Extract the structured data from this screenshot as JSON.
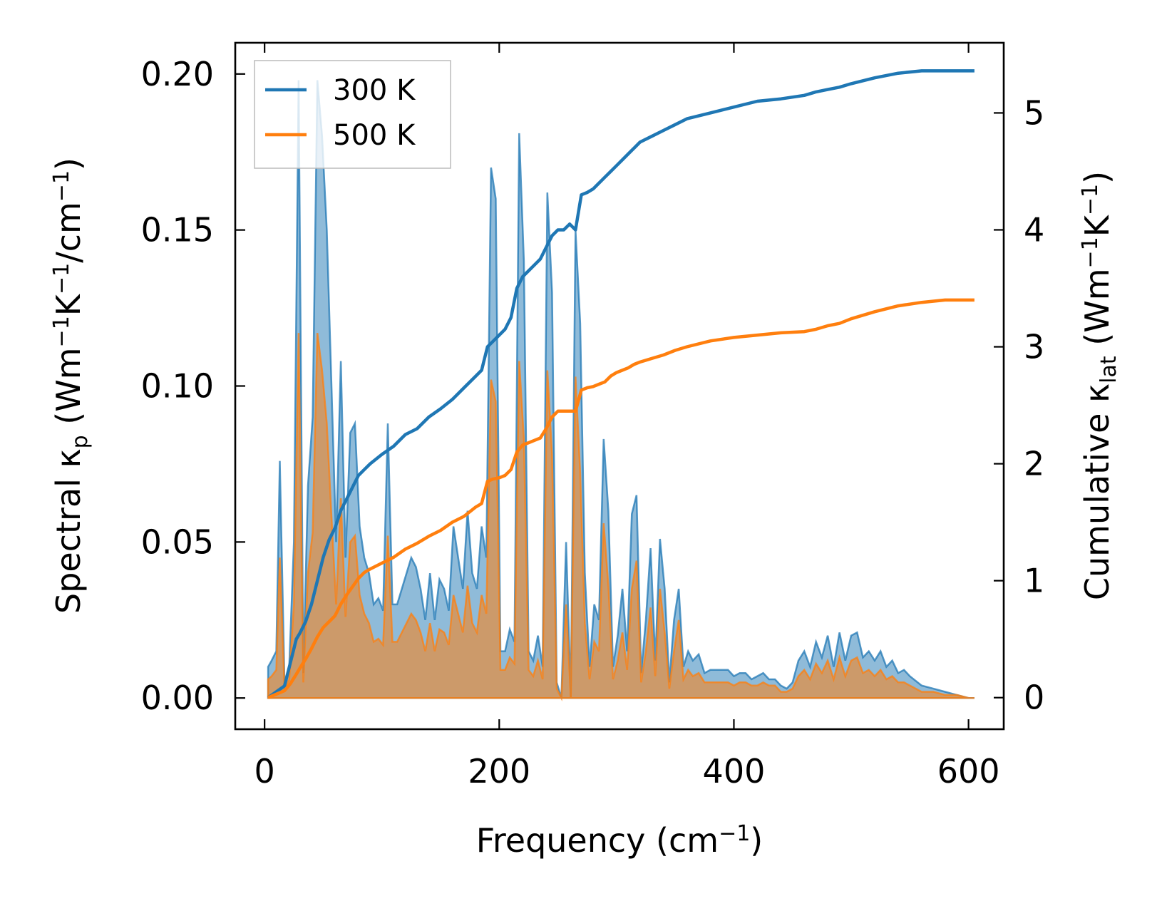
{
  "chart_data": {
    "type": "line",
    "x_axis": {
      "label_main": "Frequency (cm",
      "label_sup": "−1",
      "label_end": ")",
      "lim": [
        -25,
        630
      ],
      "ticks": [
        0,
        200,
        400,
        600
      ],
      "tick_labels": [
        "0",
        "200",
        "400",
        "600"
      ]
    },
    "y_left": {
      "label_parts": [
        "Spectral κ",
        "p",
        " (Wm",
        "−1",
        "K",
        "−1",
        "/cm",
        "−1",
        ")"
      ],
      "lim": [
        -0.01,
        0.21
      ],
      "ticks": [
        0,
        0.05,
        0.1,
        0.15,
        0.2
      ],
      "tick_labels": [
        "0.00",
        "0.05",
        "0.10",
        "0.15",
        "0.20"
      ]
    },
    "y_right": {
      "label_parts": [
        "Cumulative κ",
        "lat",
        " (Wm",
        "−1",
        "K",
        "−1",
        ")"
      ],
      "lim": [
        -0.27,
        5.6
      ],
      "ticks": [
        0,
        1,
        2,
        3,
        4,
        5
      ],
      "tick_labels": [
        "0",
        "1",
        "2",
        "3",
        "4",
        "5"
      ]
    },
    "legend": {
      "placement": "top-left",
      "entries": [
        "300 K",
        "500 K"
      ]
    },
    "series": [
      {
        "name": "300 K",
        "color": "#1f77b4",
        "fill_color": "#1f77b4",
        "spectral": {
          "x": [
            3,
            6,
            10,
            13,
            17,
            21,
            25,
            29,
            33,
            37,
            41,
            45,
            49,
            53,
            57,
            61,
            65,
            69,
            73,
            77,
            81,
            85,
            89,
            93,
            97,
            101,
            105,
            109,
            113,
            117,
            121,
            125,
            129,
            133,
            137,
            141,
            145,
            149,
            153,
            157,
            161,
            165,
            169,
            173,
            177,
            181,
            185,
            189,
            193,
            197,
            201,
            205,
            209,
            213,
            217,
            221,
            225,
            229,
            233,
            237,
            241,
            245,
            249,
            253,
            257,
            261,
            265,
            269,
            273,
            277,
            281,
            285,
            289,
            293,
            297,
            301,
            305,
            309,
            313,
            317,
            321,
            325,
            329,
            333,
            337,
            341,
            345,
            349,
            353,
            357,
            361,
            365,
            370,
            375,
            380,
            385,
            390,
            395,
            400,
            405,
            410,
            415,
            420,
            425,
            430,
            435,
            440,
            445,
            450,
            455,
            460,
            465,
            470,
            475,
            480,
            485,
            490,
            495,
            500,
            505,
            510,
            515,
            520,
            525,
            530,
            535,
            540,
            545,
            550,
            560,
            570,
            580,
            590,
            600,
            605
          ],
          "values": [
            0.01,
            0.012,
            0.015,
            0.076,
            0.005,
            0.01,
            0.05,
            0.198,
            0.008,
            0.068,
            0.09,
            0.198,
            0.18,
            0.15,
            0.1,
            0.05,
            0.108,
            0.045,
            0.085,
            0.088,
            0.055,
            0.045,
            0.04,
            0.03,
            0.032,
            0.028,
            0.088,
            0.03,
            0.03,
            0.035,
            0.04,
            0.045,
            0.042,
            0.035,
            0.025,
            0.04,
            0.025,
            0.038,
            0.035,
            0.028,
            0.055,
            0.045,
            0.035,
            0.06,
            0.04,
            0.035,
            0.055,
            0.045,
            0.17,
            0.16,
            0.015,
            0.015,
            0.022,
            0.018,
            0.181,
            0.14,
            0.015,
            0.012,
            0.02,
            0.01,
            0.162,
            0.13,
            0.005,
            0.0,
            0.05,
            0.0,
            0.15,
            0.12,
            0.04,
            0.01,
            0.03,
            0.025,
            0.083,
            0.06,
            0.01,
            0.02,
            0.035,
            0.015,
            0.059,
            0.065,
            0.008,
            0.025,
            0.048,
            0.012,
            0.051,
            0.035,
            0.005,
            0.025,
            0.035,
            0.01,
            0.015,
            0.012,
            0.014,
            0.008,
            0.009,
            0.009,
            0.009,
            0.009,
            0.007,
            0.008,
            0.008,
            0.006,
            0.007,
            0.008,
            0.006,
            0.006,
            0.004,
            0.003,
            0.005,
            0.012,
            0.015,
            0.01,
            0.018,
            0.013,
            0.02,
            0.01,
            0.021,
            0.012,
            0.02,
            0.021,
            0.013,
            0.015,
            0.012,
            0.015,
            0.01,
            0.012,
            0.008,
            0.009,
            0.007,
            0.004,
            0.003,
            0.002,
            0.001,
            0.0,
            0.0
          ]
        },
        "cumulative": {
          "x": [
            3,
            10,
            17,
            22,
            27,
            30,
            35,
            40,
            45,
            50,
            55,
            60,
            65,
            70,
            75,
            80,
            85,
            90,
            100,
            110,
            120,
            130,
            140,
            150,
            160,
            170,
            180,
            185,
            190,
            195,
            200,
            205,
            210,
            215,
            220,
            225,
            230,
            235,
            240,
            245,
            250,
            255,
            260,
            265,
            270,
            275,
            280,
            285,
            290,
            295,
            300,
            305,
            310,
            315,
            320,
            330,
            340,
            350,
            360,
            380,
            400,
            420,
            440,
            460,
            470,
            480,
            490,
            500,
            520,
            540,
            560,
            580,
            605
          ],
          "values": [
            0.0,
            0.05,
            0.1,
            0.3,
            0.5,
            0.55,
            0.65,
            0.8,
            1.0,
            1.2,
            1.35,
            1.45,
            1.6,
            1.7,
            1.8,
            1.9,
            1.95,
            2.0,
            2.08,
            2.15,
            2.25,
            2.3,
            2.4,
            2.47,
            2.55,
            2.65,
            2.75,
            2.8,
            3.0,
            3.05,
            3.1,
            3.15,
            3.25,
            3.5,
            3.6,
            3.65,
            3.7,
            3.75,
            3.85,
            3.95,
            4.0,
            4.0,
            4.05,
            4.0,
            4.3,
            4.32,
            4.35,
            4.4,
            4.45,
            4.5,
            4.55,
            4.6,
            4.65,
            4.7,
            4.75,
            4.8,
            4.85,
            4.9,
            4.95,
            5.0,
            5.05,
            5.1,
            5.12,
            5.15,
            5.18,
            5.2,
            5.22,
            5.25,
            5.3,
            5.34,
            5.36,
            5.36,
            5.36
          ]
        }
      },
      {
        "name": "500 K",
        "color": "#ff7f0e",
        "fill_color": "#ff7f0e",
        "spectral": {
          "x": [
            3,
            6,
            10,
            13,
            17,
            21,
            25,
            29,
            33,
            37,
            41,
            45,
            49,
            53,
            57,
            61,
            65,
            69,
            73,
            77,
            81,
            85,
            89,
            93,
            97,
            101,
            105,
            109,
            113,
            117,
            121,
            125,
            129,
            133,
            137,
            141,
            145,
            149,
            153,
            157,
            161,
            165,
            169,
            173,
            177,
            181,
            185,
            189,
            193,
            197,
            201,
            205,
            209,
            213,
            217,
            221,
            225,
            229,
            233,
            237,
            241,
            245,
            249,
            253,
            257,
            261,
            265,
            269,
            273,
            277,
            281,
            285,
            289,
            293,
            297,
            301,
            305,
            309,
            313,
            317,
            321,
            325,
            329,
            333,
            337,
            341,
            345,
            349,
            353,
            357,
            361,
            365,
            370,
            375,
            380,
            385,
            390,
            395,
            400,
            405,
            410,
            415,
            420,
            425,
            430,
            435,
            440,
            445,
            450,
            455,
            460,
            465,
            470,
            475,
            480,
            485,
            490,
            495,
            500,
            505,
            510,
            515,
            520,
            525,
            530,
            535,
            540,
            545,
            550,
            560,
            570,
            580,
            590,
            600,
            605
          ],
          "values": [
            0.006,
            0.007,
            0.009,
            0.045,
            0.003,
            0.006,
            0.03,
            0.117,
            0.005,
            0.04,
            0.053,
            0.117,
            0.105,
            0.088,
            0.058,
            0.03,
            0.064,
            0.026,
            0.05,
            0.052,
            0.033,
            0.027,
            0.024,
            0.018,
            0.019,
            0.017,
            0.052,
            0.018,
            0.018,
            0.021,
            0.024,
            0.027,
            0.025,
            0.021,
            0.015,
            0.024,
            0.015,
            0.022,
            0.021,
            0.017,
            0.033,
            0.027,
            0.021,
            0.036,
            0.024,
            0.021,
            0.033,
            0.027,
            0.102,
            0.095,
            0.009,
            0.009,
            0.013,
            0.011,
            0.108,
            0.083,
            0.009,
            0.007,
            0.012,
            0.006,
            0.105,
            0.078,
            0.003,
            0.0,
            0.03,
            0.0,
            0.103,
            0.072,
            0.024,
            0.006,
            0.018,
            0.015,
            0.056,
            0.036,
            0.006,
            0.012,
            0.021,
            0.009,
            0.035,
            0.044,
            0.005,
            0.015,
            0.029,
            0.007,
            0.035,
            0.021,
            0.003,
            0.015,
            0.025,
            0.006,
            0.009,
            0.007,
            0.008,
            0.005,
            0.005,
            0.005,
            0.005,
            0.005,
            0.004,
            0.005,
            0.005,
            0.004,
            0.004,
            0.005,
            0.004,
            0.004,
            0.002,
            0.002,
            0.003,
            0.007,
            0.009,
            0.006,
            0.011,
            0.008,
            0.012,
            0.006,
            0.013,
            0.007,
            0.012,
            0.013,
            0.008,
            0.009,
            0.007,
            0.009,
            0.006,
            0.007,
            0.005,
            0.005,
            0.004,
            0.002,
            0.002,
            0.001,
            0.001,
            0.0,
            0.0
          ]
        },
        "cumulative": {
          "x": [
            3,
            10,
            17,
            22,
            27,
            30,
            35,
            40,
            45,
            50,
            55,
            60,
            65,
            70,
            75,
            80,
            85,
            90,
            100,
            110,
            120,
            130,
            140,
            150,
            160,
            170,
            180,
            185,
            190,
            195,
            200,
            205,
            210,
            215,
            220,
            225,
            230,
            235,
            240,
            245,
            250,
            255,
            260,
            265,
            270,
            275,
            280,
            285,
            290,
            295,
            300,
            305,
            310,
            315,
            320,
            330,
            340,
            350,
            360,
            380,
            400,
            420,
            440,
            460,
            470,
            480,
            490,
            500,
            520,
            540,
            560,
            580,
            605
          ],
          "values": [
            0.0,
            0.03,
            0.06,
            0.12,
            0.2,
            0.25,
            0.33,
            0.42,
            0.52,
            0.6,
            0.65,
            0.7,
            0.8,
            0.88,
            0.95,
            1.02,
            1.07,
            1.1,
            1.15,
            1.2,
            1.27,
            1.32,
            1.38,
            1.43,
            1.5,
            1.55,
            1.63,
            1.66,
            1.85,
            1.87,
            1.88,
            1.9,
            1.95,
            2.1,
            2.16,
            2.18,
            2.2,
            2.22,
            2.3,
            2.4,
            2.45,
            2.45,
            2.45,
            2.45,
            2.63,
            2.65,
            2.66,
            2.68,
            2.7,
            2.75,
            2.78,
            2.8,
            2.82,
            2.85,
            2.87,
            2.9,
            2.93,
            2.97,
            3.0,
            3.05,
            3.08,
            3.1,
            3.12,
            3.13,
            3.15,
            3.18,
            3.2,
            3.24,
            3.3,
            3.35,
            3.38,
            3.4,
            3.4
          ]
        }
      }
    ]
  }
}
